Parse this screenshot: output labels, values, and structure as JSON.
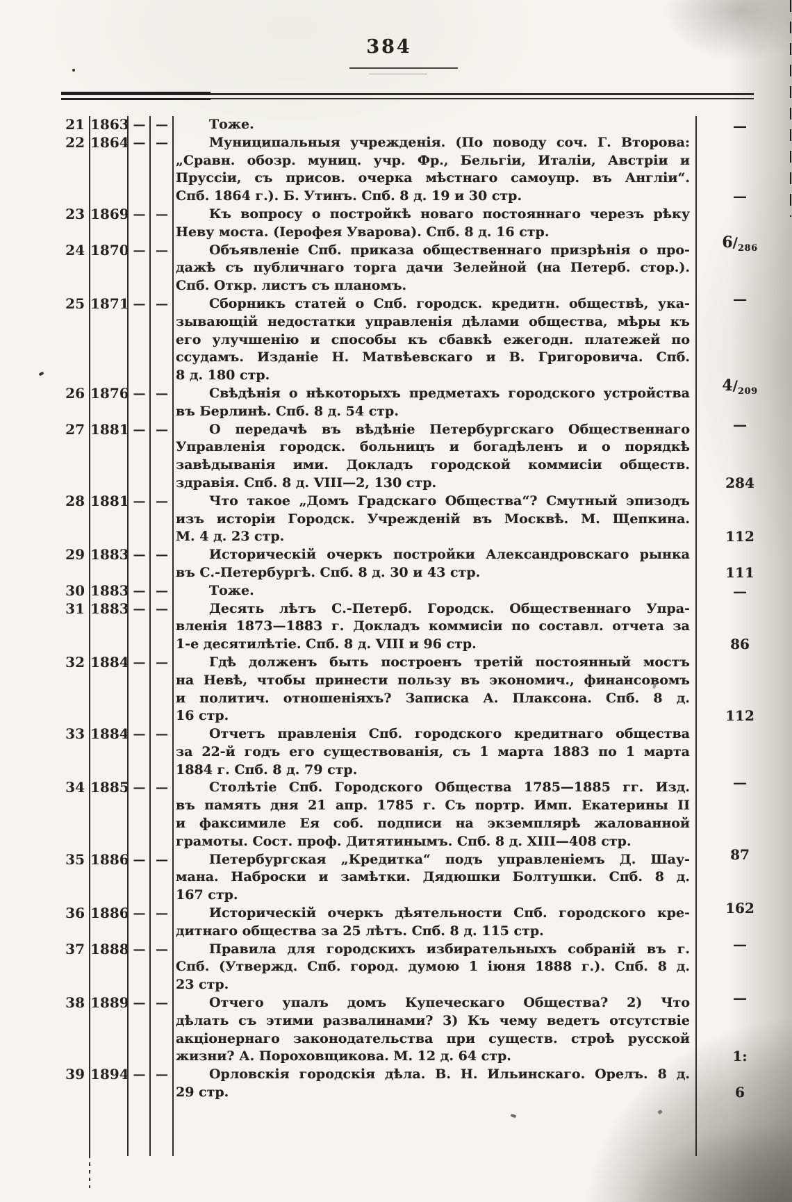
{
  "page": {
    "number": "384",
    "paper_hex": "#f6f4ee",
    "ink_hex": "#24221d",
    "rule_hex": "#2e2c27"
  },
  "table": {
    "entries": [
      {
        "no": "21",
        "year": "1863",
        "dash1": "—",
        "dash2": "—",
        "lines": [
          "Тоже."
        ],
        "margin": {
          "text": "—",
          "align": "top"
        }
      },
      {
        "no": "22",
        "year": "1864",
        "dash1": "—",
        "dash2": "—",
        "lines": [
          "Муниципальныя учрежденія. (По поводу соч. Г. Второва:",
          "„Сравн. обозр. муниц. учр. Фр., Бельгіи, Италіи, Австріи и",
          "Пруссіи, съ присов. очерка мѣстнаго самоупр. въ Англіи“.",
          "Спб. 1864 г.). Б. Утинъ. Спб. 8 д. 19 и 30 стр."
        ],
        "margin": {
          "text": "—",
          "align": "bottom"
        }
      },
      {
        "no": "23",
        "year": "1869",
        "dash1": "—",
        "dash2": "—",
        "lines": [
          "Къ вопросу о постройкѣ новаго постояннаго черезъ рѣку",
          "Неву моста. (Іерофея Уварова). Спб. 8 д. 16 стр."
        ],
        "margin": {
          "num": "6",
          "den": "286",
          "align": "below"
        }
      },
      {
        "no": "24",
        "year": "1870",
        "dash1": "—",
        "dash2": "—",
        "lines": [
          "Объявленіе Спб. приказа общественнаго призрѣнія о про-",
          "дажѣ съ публичнаго торга дачи Зелейной (на Петерб. стор.).",
          "Спб. Откр. листъ съ планомъ."
        ],
        "margin": {
          "text": "—",
          "align": "below"
        }
      },
      {
        "no": "25",
        "year": "1871",
        "dash1": "—",
        "dash2": "—",
        "lines": [
          "Сборникъ статей о Спб. городск. кредитн. обществѣ, ука-",
          "зывающій недостатки управленія дѣлами общества, мѣры къ",
          "его улучшенію и способы къ сбавкѣ ежегодн. платежей по",
          "ссудамъ. Изданіе Н. Матвѣевскаго и В. Григоровича. Спб.",
          "8 д. 180 стр."
        ],
        "margin": {
          "num": "4",
          "den": "209",
          "align": "below"
        }
      },
      {
        "no": "26",
        "year": "1876",
        "dash1": "—",
        "dash2": "—",
        "lines": [
          "Свѣдѣнія о нѣкоторыхъ предметахъ городского устройства",
          "въ Берлинѣ. Спб. 8 д. 54 стр."
        ],
        "margin": {
          "text": "—",
          "align": "below"
        }
      },
      {
        "no": "27",
        "year": "1881",
        "dash1": "—",
        "dash2": "—",
        "lines": [
          "О передачѣ въ вѣдѣніе Петербургскаго Общественнаго",
          "Управленія городск. больницъ и богадѣленъ и о порядкѣ",
          "завѣдыванія ими. Докладъ городской коммисіи обществ.",
          "здравія. Спб. 8 д. VIII—2, 130 стр."
        ],
        "margin": {
          "text": "284",
          "align": "bottom"
        }
      },
      {
        "no": "28",
        "year": "1881",
        "dash1": "—",
        "dash2": "—",
        "lines": [
          "Что такое „Домъ Градскаго Общества“? Смутный эпизодъ",
          "изъ исторіи Городск. Учрежденій въ Москвѣ. М. Щепкина.",
          "М. 4 д. 23 стр."
        ],
        "margin": {
          "text": "112",
          "align": "bottom"
        }
      },
      {
        "no": "29",
        "year": "1883",
        "dash1": "—",
        "dash2": "—",
        "lines": [
          "Историческій очеркъ постройки Александровскаго рынка",
          "въ С.-Петербургѣ. Спб. 8 д. 30 и 43 стр."
        ],
        "margin": {
          "text": "111",
          "align": "bottom"
        }
      },
      {
        "no": "30",
        "year": "1883",
        "dash1": "—",
        "dash2": "—",
        "lines": [
          "Тоже."
        ],
        "margin": {
          "text": "—",
          "align": "center"
        }
      },
      {
        "no": "31",
        "year": "1883",
        "dash1": "—",
        "dash2": "—",
        "lines": [
          "Десять лѣтъ С.-Петерб. Городск. Общественнаго Упра-",
          "вленія 1873—1883 г. Докладъ коммисіи по составл. отчета за",
          "1-е десятилѣтіе. Спб. 8 д. VIII и 96 стр."
        ],
        "margin": {
          "text": "86",
          "align": "bottom"
        }
      },
      {
        "no": "32",
        "year": "1884",
        "dash1": "—",
        "dash2": "—",
        "lines": [
          "Гдѣ долженъ быть построенъ третій постоянный мостъ",
          "на Невѣ, чтобы принести пользу въ экономич., финансовомъ",
          "и политич. отношеніяхъ? Записка А. Плаксона. Спб. 8 д.",
          "16 стр."
        ],
        "margin": {
          "text": "112",
          "align": "bottom"
        }
      },
      {
        "no": "33",
        "year": "1884",
        "dash1": "—",
        "dash2": "—",
        "lines": [
          "Отчетъ правленія Спб. городского кредитнаго общества",
          "за 22-й годъ его существованія, съ 1 марта 1883 по 1 марта",
          "1884 г. Спб. 8 д. 79 стр."
        ],
        "margin": {
          "text": "—",
          "align": "below"
        }
      },
      {
        "no": "34",
        "year": "1885",
        "dash1": "—",
        "dash2": "—",
        "lines": [
          "Столѣтіе Спб. Городского Общества 1785—1885 гг. Изд.",
          "въ память дня 21 апр. 1785 г. Съ портр. Имп. Екатерины II",
          "и факсимиле Ея соб. подписи на экземплярѣ жалованной",
          "грамоты. Сост. проф. Дитятинымъ. Спб. 8 д. XIII—408 стр."
        ],
        "margin": {
          "text": "87",
          "align": "below"
        }
      },
      {
        "no": "35",
        "year": "1886",
        "dash1": "—",
        "dash2": "—",
        "lines": [
          "Петербургская „Кредитка“ подъ управленіемъ Д. Шау-",
          "мана. Наброски и замѣтки. Дядюшки Болтушки. Спб. 8 д.",
          "167 стр."
        ],
        "margin": {
          "text": "162",
          "align": "below"
        }
      },
      {
        "no": "36",
        "year": "1886",
        "dash1": "—",
        "dash2": "—",
        "lines": [
          "Историческій очеркъ дѣятельности Спб. городского кре-",
          "дитнаго общества за 25 лѣтъ. Спб. 8 д. 115 стр."
        ],
        "margin": {
          "text": "—",
          "align": "below"
        }
      },
      {
        "no": "37",
        "year": "1888",
        "dash1": "—",
        "dash2": "—",
        "lines": [
          "Правила для городскихъ избирательныхъ собраній въ г.",
          "Спб. (Утвержд. Спб. город. думою 1 іюня 1888 г.). Спб. 8 д.",
          "23 стр."
        ],
        "margin": {
          "text": "—",
          "align": "below"
        }
      },
      {
        "no": "38",
        "year": "1889",
        "dash1": "—",
        "dash2": "—",
        "lines": [
          "Отчего упалъ домъ Купеческаго Общества? 2) Что",
          "дѣлать съ этими развалинами? 3) Къ чему ведетъ отсутствіе",
          "акціонернаго законодательства при существ. строѣ русской",
          "жизни? А. Пороховщикова. М. 12 д. 64 стр."
        ],
        "margin": {
          "text": "1:",
          "align": "bottom"
        }
      },
      {
        "no": "39",
        "year": "1894",
        "dash1": "—",
        "dash2": "—",
        "lines": [
          "Орловскія городскія дѣла. В. Н. Ильинскаго. Орелъ. 8 д.",
          "29 стр."
        ],
        "margin": {
          "text": "6",
          "align": "bottom"
        }
      }
    ]
  }
}
